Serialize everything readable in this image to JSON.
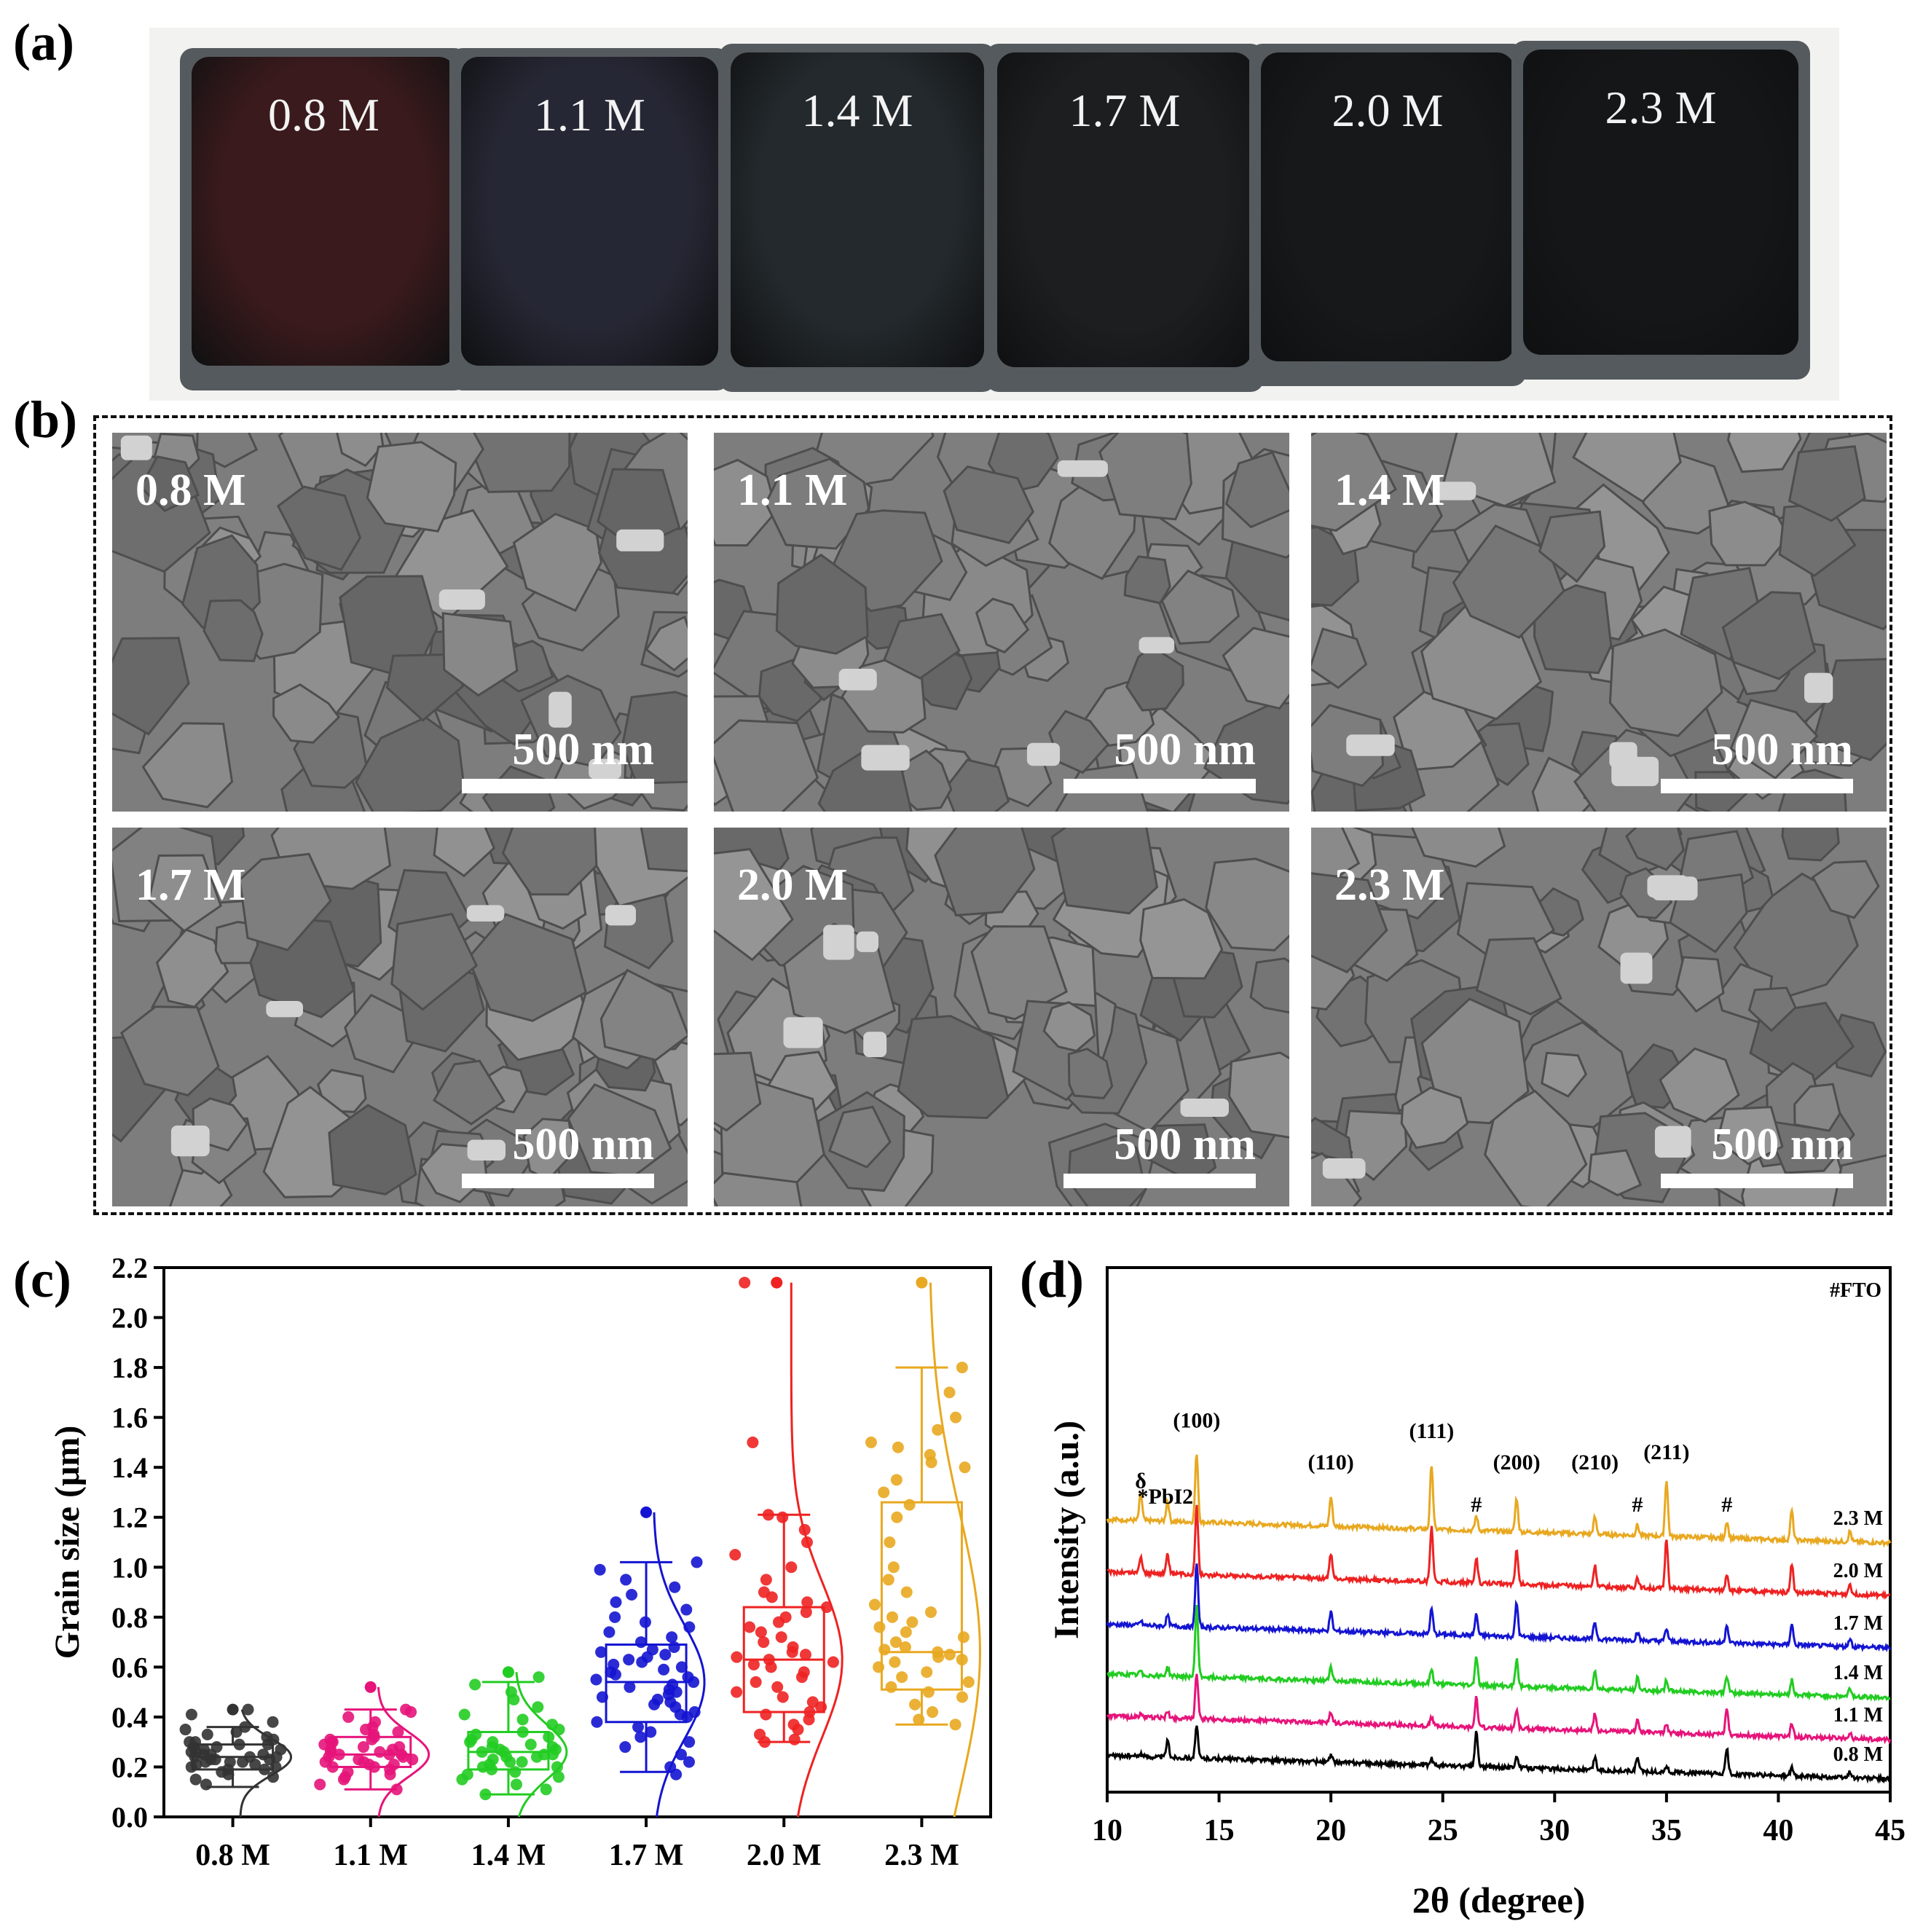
{
  "panel_labels": [
    "(a)",
    "(b)",
    "(c)",
    "(d)"
  ],
  "photo": {
    "samples": [
      {
        "label": "0.8 M",
        "color": "#3a1a1c"
      },
      {
        "label": "1.1 M",
        "color": "#262734"
      },
      {
        "label": "1.4 M",
        "color": "#23292d"
      },
      {
        "label": "1.7 M",
        "color": "#1c1e20"
      },
      {
        "label": "2.0 M",
        "color": "#16181a"
      },
      {
        "label": "2.3 M",
        "color": "#151617"
      }
    ]
  },
  "sem": {
    "scale_bar": "500 nm",
    "images": [
      {
        "label": "0.8 M"
      },
      {
        "label": "1.1 M"
      },
      {
        "label": "1.4 M"
      },
      {
        "label": "1.7 M"
      },
      {
        "label": "2.0 M"
      },
      {
        "label": "2.3 M"
      }
    ]
  },
  "chart_data": [
    {
      "type": "box",
      "panel": "(c)",
      "ylabel": "Grain size (μm)",
      "xlabel": "",
      "ylim": [
        0.0,
        2.2
      ],
      "yticks": [
        "0.0",
        "0.2",
        "0.4",
        "0.6",
        "0.8",
        "1.0",
        "1.2",
        "1.4",
        "1.6",
        "1.8",
        "2.0",
        "2.2"
      ],
      "categories": [
        "0.8 M",
        "1.1 M",
        "1.4 M",
        "1.7 M",
        "2.0 M",
        "2.3 M"
      ],
      "colors": [
        "#333333",
        "#e6147a",
        "#22cc22",
        "#1414d2",
        "#ee2222",
        "#e8a820"
      ],
      "series": [
        {
          "name": "0.8 M",
          "whisker_low": 0.12,
          "q1": 0.19,
          "median": 0.24,
          "q3": 0.29,
          "whisker_high": 0.36,
          "max": 0.43,
          "points": [
            0.13,
            0.15,
            0.16,
            0.17,
            0.18,
            0.19,
            0.19,
            0.2,
            0.2,
            0.21,
            0.21,
            0.22,
            0.22,
            0.22,
            0.23,
            0.23,
            0.23,
            0.24,
            0.24,
            0.24,
            0.25,
            0.25,
            0.25,
            0.26,
            0.26,
            0.27,
            0.27,
            0.28,
            0.28,
            0.29,
            0.29,
            0.3,
            0.3,
            0.31,
            0.32,
            0.33,
            0.34,
            0.35,
            0.36,
            0.38,
            0.41,
            0.43
          ]
        },
        {
          "name": "1.1 M",
          "whisker_low": 0.11,
          "q1": 0.2,
          "median": 0.25,
          "q3": 0.32,
          "whisker_high": 0.43,
          "max": 0.52,
          "points": [
            0.11,
            0.13,
            0.15,
            0.16,
            0.17,
            0.18,
            0.19,
            0.2,
            0.2,
            0.21,
            0.21,
            0.22,
            0.22,
            0.23,
            0.23,
            0.24,
            0.24,
            0.25,
            0.25,
            0.25,
            0.26,
            0.26,
            0.27,
            0.27,
            0.28,
            0.28,
            0.29,
            0.3,
            0.3,
            0.31,
            0.31,
            0.32,
            0.33,
            0.34,
            0.35,
            0.36,
            0.38,
            0.4,
            0.42,
            0.43
          ]
        },
        {
          "name": "1.4 M",
          "whisker_low": 0.09,
          "q1": 0.19,
          "median": 0.26,
          "q3": 0.34,
          "whisker_high": 0.54,
          "max": 0.58,
          "points": [
            0.09,
            0.11,
            0.13,
            0.15,
            0.16,
            0.17,
            0.18,
            0.19,
            0.2,
            0.2,
            0.21,
            0.22,
            0.22,
            0.23,
            0.24,
            0.24,
            0.25,
            0.25,
            0.26,
            0.26,
            0.27,
            0.27,
            0.28,
            0.28,
            0.29,
            0.3,
            0.3,
            0.31,
            0.32,
            0.33,
            0.34,
            0.35,
            0.37,
            0.39,
            0.41,
            0.44,
            0.47,
            0.5,
            0.53,
            0.56
          ]
        },
        {
          "name": "1.7 M",
          "whisker_low": 0.18,
          "q1": 0.38,
          "median": 0.54,
          "q3": 0.69,
          "whisker_high": 1.02,
          "max": 1.22,
          "points": [
            0.17,
            0.2,
            0.22,
            0.25,
            0.28,
            0.3,
            0.32,
            0.34,
            0.36,
            0.38,
            0.4,
            0.41,
            0.42,
            0.44,
            0.45,
            0.46,
            0.47,
            0.48,
            0.49,
            0.5,
            0.51,
            0.52,
            0.53,
            0.54,
            0.55,
            0.56,
            0.57,
            0.58,
            0.59,
            0.6,
            0.61,
            0.62,
            0.63,
            0.64,
            0.65,
            0.66,
            0.67,
            0.68,
            0.7,
            0.72,
            0.74,
            0.76,
            0.78,
            0.8,
            0.83,
            0.86,
            0.89,
            0.92,
            0.95,
            0.99,
            1.02
          ]
        },
        {
          "name": "2.0 M",
          "whisker_low": 0.3,
          "q1": 0.42,
          "median": 0.63,
          "q3": 0.84,
          "whisker_high": 1.21,
          "max": 2.14,
          "points": [
            0.3,
            0.31,
            0.33,
            0.35,
            0.37,
            0.39,
            0.41,
            0.42,
            0.44,
            0.46,
            0.48,
            0.5,
            0.52,
            0.54,
            0.56,
            0.58,
            0.6,
            0.61,
            0.62,
            0.63,
            0.64,
            0.65,
            0.66,
            0.68,
            0.7,
            0.72,
            0.74,
            0.76,
            0.78,
            0.8,
            0.82,
            0.84,
            0.86,
            0.88,
            0.9,
            0.95,
            1.0,
            1.05,
            1.1,
            1.15,
            1.2,
            1.21,
            1.5,
            2.14
          ]
        },
        {
          "name": "2.3 M",
          "whisker_low": 0.37,
          "q1": 0.51,
          "median": 0.66,
          "q3": 1.26,
          "whisker_high": 1.8,
          "max": 2.14,
          "points": [
            0.37,
            0.39,
            0.42,
            0.45,
            0.48,
            0.5,
            0.52,
            0.54,
            0.56,
            0.58,
            0.6,
            0.62,
            0.63,
            0.64,
            0.65,
            0.66,
            0.67,
            0.68,
            0.7,
            0.72,
            0.74,
            0.76,
            0.78,
            0.8,
            0.82,
            0.85,
            0.9,
            0.95,
            1.0,
            1.1,
            1.2,
            1.25,
            1.3,
            1.35,
            1.4,
            1.42,
            1.45,
            1.48,
            1.5,
            1.55,
            1.6,
            1.7,
            1.8
          ]
        }
      ]
    },
    {
      "type": "line",
      "panel": "(d)",
      "xlabel": "2θ (degree)",
      "ylabel": "Intensity (a.u.)",
      "xlim": [
        10,
        45
      ],
      "xticks": [
        "10",
        "15",
        "20",
        "25",
        "30",
        "35",
        "40",
        "45"
      ],
      "legend_note": "#FTO",
      "peak_labels": [
        {
          "text": "δ",
          "x": 11.5
        },
        {
          "text": "*PbI2",
          "x": 12.6
        },
        {
          "text": "(100)",
          "x": 14.0
        },
        {
          "text": "(110)",
          "x": 20.0
        },
        {
          "text": "(111)",
          "x": 24.5
        },
        {
          "text": "#",
          "x": 26.5
        },
        {
          "text": "(200)",
          "x": 28.3
        },
        {
          "text": "(210)",
          "x": 31.8
        },
        {
          "text": "#",
          "x": 33.7
        },
        {
          "text": "(211)",
          "x": 35.0
        },
        {
          "text": "#",
          "x": 37.7
        }
      ],
      "peak_positions": [
        11.5,
        12.7,
        14.0,
        20.0,
        24.5,
        26.5,
        28.3,
        31.8,
        33.7,
        35.0,
        37.7,
        40.6,
        43.2
      ],
      "series": [
        {
          "name": "2.3 M",
          "color": "#e8a820",
          "baseline": 5.2,
          "slope": 0.45,
          "peaks": [
            1.3,
            1.0,
            3.3,
            1.4,
            3.1,
            0.7,
            1.6,
            0.8,
            0.5,
            2.7,
            0.8,
            1.4,
            0.5
          ]
        },
        {
          "name": "2.0 M",
          "color": "#ee2222",
          "baseline": 4.2,
          "slope": 0.45,
          "peaks": [
            0.8,
            0.9,
            3.3,
            1.2,
            2.6,
            1.2,
            1.6,
            1.0,
            0.5,
            2.4,
            0.8,
            1.4,
            0.5
          ]
        },
        {
          "name": "1.7 M",
          "color": "#1414d2",
          "baseline": 3.2,
          "slope": 0.45,
          "peaks": [
            0.2,
            0.5,
            3.1,
            0.9,
            1.2,
            1.0,
            1.6,
            0.8,
            0.4,
            0.6,
            0.9,
            1.0,
            0.4
          ]
        },
        {
          "name": "1.4 M",
          "color": "#22cc22",
          "baseline": 2.25,
          "slope": 0.45,
          "peaks": [
            0.2,
            0.4,
            3.4,
            0.7,
            0.7,
            1.4,
            1.3,
            0.8,
            0.6,
            0.5,
            0.8,
            0.7,
            0.4
          ]
        },
        {
          "name": "1.1 M",
          "color": "#e6147a",
          "baseline": 1.45,
          "slope": 0.45,
          "peaks": [
            0.15,
            0.3,
            2.2,
            0.5,
            0.4,
            1.4,
            0.9,
            0.8,
            0.6,
            0.4,
            1.3,
            0.6,
            0.3
          ]
        },
        {
          "name": "0.8 M",
          "color": "#000000",
          "baseline": 0.7,
          "slope": 0.45,
          "peaks": [
            0.15,
            0.8,
            1.5,
            0.3,
            0.3,
            1.7,
            0.6,
            0.6,
            0.7,
            0.3,
            1.2,
            0.4,
            0.3
          ]
        }
      ]
    }
  ]
}
